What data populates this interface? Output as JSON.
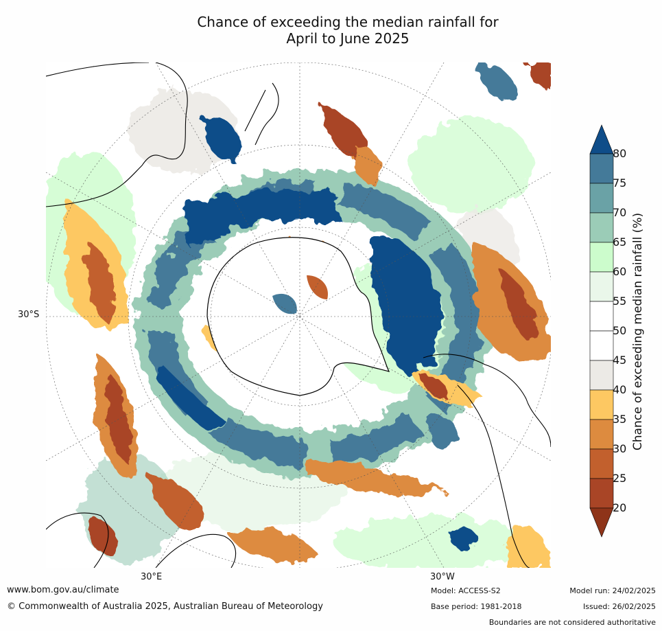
{
  "title_line1": "Chance of exceeding the median rainfall for",
  "title_line2": "April to June 2025",
  "lat_label": "30°S",
  "lon_labels": [
    "30°E",
    "30°W"
  ],
  "colorbar": {
    "title": "Chance of exceeding median rainfall (%)",
    "ticks": [
      "80",
      "75",
      "70",
      "65",
      "60",
      "55",
      "50",
      "45",
      "40",
      "35",
      "30",
      "25",
      "20"
    ],
    "colors": [
      "#0f4d89",
      "#447a99",
      "#6aa2a6",
      "#9bccb7",
      "#ccfccc",
      "#eaf7ea",
      "#ffffff",
      "#ffffff",
      "#eceae6",
      "#fdc862",
      "#dd8b3f",
      "#c2602d",
      "#a94526",
      "#8e3419"
    ]
  },
  "footer": {
    "website": "www.bom.gov.au/climate",
    "copyright": "© Commonwealth of Australia 2025, Australian Bureau of Meteorology",
    "model": "Model: ACCESS-S2",
    "base_period": "Base period: 1981-2018",
    "model_run": "Model run: 24/02/2025",
    "issued": "Issued: 26/02/2025",
    "disclaimer": "Boundaries are not considered authoritative"
  }
}
